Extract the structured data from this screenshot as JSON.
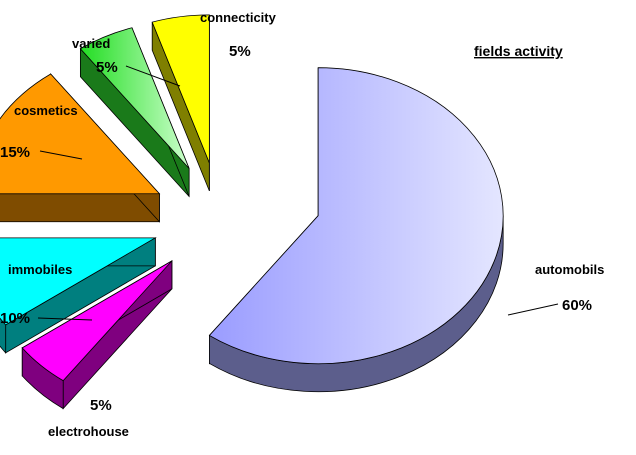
{
  "chart_data": {
    "type": "pie",
    "title": "fields activity",
    "style": "3d-exploded",
    "categories": [
      "automobils",
      "electrohouse",
      "immobiles",
      "cosmetics",
      "varied",
      "connecticity"
    ],
    "values": [
      60,
      5,
      10,
      15,
      5,
      5
    ],
    "value_labels": [
      "60%",
      "5%",
      "10%",
      "15%",
      "5%",
      "5%"
    ],
    "colors": [
      "#b8bcff",
      "#ff00ff",
      "#00ffff",
      "#ff9900",
      "#33ee33",
      "#ffff00"
    ],
    "legend": "none"
  }
}
